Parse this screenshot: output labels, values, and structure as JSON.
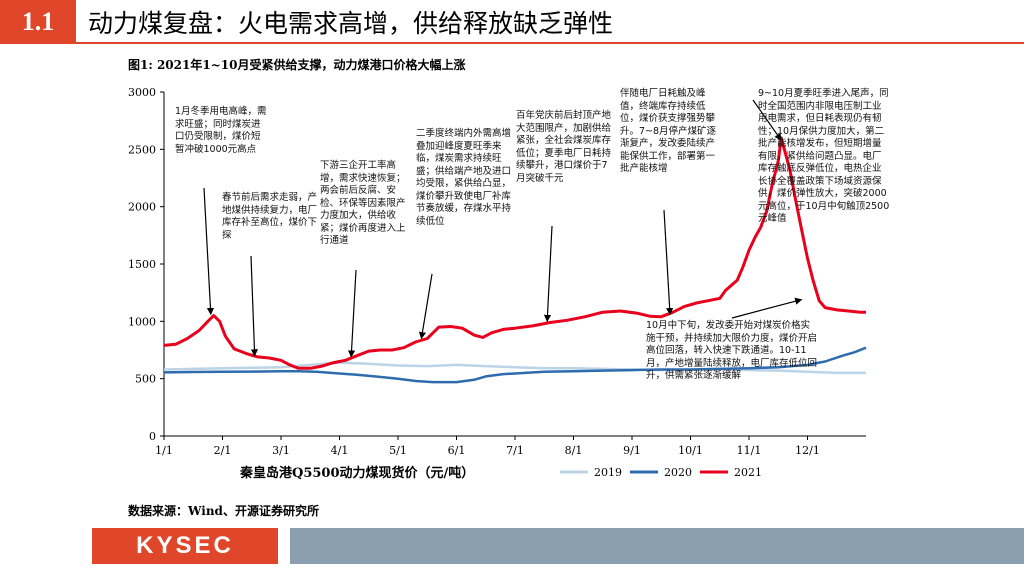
{
  "header": {
    "section": "1.1",
    "title": "动力煤复盘：火电需求高增，供给释放缺乏弹性"
  },
  "figure_caption": "图1:  2021年1~10月受紧供给支撑，动力煤港口价格大幅上涨",
  "source_note": "数据来源：Wind、开源证券研究所",
  "footer": {
    "logo_text": "KYSEC"
  },
  "chart_data": {
    "type": "line",
    "xlabel": "秦皇岛港Q5500动力煤现货价（元/吨）",
    "ylabel": "",
    "x_ticks": [
      "1/1",
      "2/1",
      "3/1",
      "4/1",
      "5/1",
      "6/1",
      "7/1",
      "8/1",
      "9/1",
      "10/1",
      "11/1",
      "12/1"
    ],
    "y_ticks": [
      0,
      500,
      1000,
      1500,
      2000,
      2500,
      3000
    ],
    "ylim": [
      0,
      3000
    ],
    "x_range_months": [
      0,
      12
    ],
    "legend_position": "bottom-right",
    "series": [
      {
        "name": "2019",
        "color": "#bcd3e8",
        "points": [
          [
            0,
            580
          ],
          [
            0.5,
            585
          ],
          [
            1,
            590
          ],
          [
            1.5,
            595
          ],
          [
            2,
            600
          ],
          [
            2.5,
            620
          ],
          [
            3,
            640
          ],
          [
            3.5,
            630
          ],
          [
            4,
            615
          ],
          [
            4.5,
            610
          ],
          [
            5,
            620
          ],
          [
            5.5,
            610
          ],
          [
            6,
            600
          ],
          [
            6.5,
            590
          ],
          [
            7,
            590
          ],
          [
            7.5,
            585
          ],
          [
            8,
            580
          ],
          [
            8.5,
            575
          ],
          [
            9,
            580
          ],
          [
            9.5,
            585
          ],
          [
            10,
            575
          ],
          [
            10.5,
            570
          ],
          [
            11,
            560
          ],
          [
            11.5,
            550
          ],
          [
            12,
            550
          ]
        ]
      },
      {
        "name": "2020",
        "color": "#2e6cae",
        "points": [
          [
            0,
            555
          ],
          [
            0.5,
            558
          ],
          [
            1,
            560
          ],
          [
            1.5,
            562
          ],
          [
            2,
            565
          ],
          [
            2.3,
            565
          ],
          [
            2.6,
            560
          ],
          [
            3,
            545
          ],
          [
            3.3,
            535
          ],
          [
            3.6,
            520
          ],
          [
            4,
            500
          ],
          [
            4.3,
            480
          ],
          [
            4.6,
            470
          ],
          [
            5,
            470
          ],
          [
            5.3,
            490
          ],
          [
            5.5,
            520
          ],
          [
            5.8,
            540
          ],
          [
            6,
            545
          ],
          [
            6.5,
            560
          ],
          [
            7,
            565
          ],
          [
            7.5,
            570
          ],
          [
            8,
            575
          ],
          [
            8.5,
            580
          ],
          [
            9,
            580
          ],
          [
            9.5,
            585
          ],
          [
            10,
            590
          ],
          [
            10.5,
            600
          ],
          [
            11,
            620
          ],
          [
            11.3,
            650
          ],
          [
            11.6,
            700
          ],
          [
            11.8,
            730
          ],
          [
            12,
            770
          ]
        ]
      },
      {
        "name": "2021",
        "color": "#e8001c",
        "points": [
          [
            0,
            790
          ],
          [
            0.2,
            800
          ],
          [
            0.4,
            850
          ],
          [
            0.6,
            920
          ],
          [
            0.75,
            1000
          ],
          [
            0.85,
            1050
          ],
          [
            0.95,
            1000
          ],
          [
            1.05,
            870
          ],
          [
            1.2,
            760
          ],
          [
            1.4,
            720
          ],
          [
            1.6,
            690
          ],
          [
            1.8,
            680
          ],
          [
            2,
            660
          ],
          [
            2.15,
            620
          ],
          [
            2.3,
            590
          ],
          [
            2.5,
            590
          ],
          [
            2.7,
            610
          ],
          [
            2.9,
            640
          ],
          [
            3.1,
            660
          ],
          [
            3.3,
            700
          ],
          [
            3.5,
            740
          ],
          [
            3.7,
            750
          ],
          [
            3.9,
            750
          ],
          [
            4.1,
            770
          ],
          [
            4.3,
            820
          ],
          [
            4.5,
            850
          ],
          [
            4.7,
            950
          ],
          [
            4.9,
            955
          ],
          [
            5.1,
            940
          ],
          [
            5.3,
            880
          ],
          [
            5.45,
            860
          ],
          [
            5.6,
            900
          ],
          [
            5.8,
            930
          ],
          [
            6,
            940
          ],
          [
            6.3,
            960
          ],
          [
            6.6,
            990
          ],
          [
            6.9,
            1010
          ],
          [
            7.2,
            1040
          ],
          [
            7.5,
            1080
          ],
          [
            7.8,
            1090
          ],
          [
            8.1,
            1070
          ],
          [
            8.3,
            1045
          ],
          [
            8.5,
            1040
          ],
          [
            8.7,
            1080
          ],
          [
            8.9,
            1130
          ],
          [
            9.1,
            1160
          ],
          [
            9.3,
            1180
          ],
          [
            9.5,
            1200
          ],
          [
            9.6,
            1270
          ],
          [
            9.8,
            1360
          ],
          [
            9.9,
            1480
          ],
          [
            10.0,
            1620
          ],
          [
            10.1,
            1730
          ],
          [
            10.2,
            1820
          ],
          [
            10.3,
            1960
          ],
          [
            10.4,
            2200
          ],
          [
            10.5,
            2400
          ],
          [
            10.55,
            2600
          ],
          [
            10.62,
            2470
          ],
          [
            10.7,
            2320
          ],
          [
            10.8,
            2050
          ],
          [
            10.9,
            1800
          ],
          [
            11.0,
            1550
          ],
          [
            11.1,
            1350
          ],
          [
            11.2,
            1180
          ],
          [
            11.3,
            1120
          ],
          [
            11.5,
            1100
          ],
          [
            11.7,
            1090
          ],
          [
            11.9,
            1080
          ],
          [
            12.0,
            1080
          ]
        ]
      }
    ],
    "annotations": [
      {
        "id": "a1",
        "text": "1月冬季用电高峰，需求旺盛；同时煤炭进口仍受限制，煤价短暂冲破1000元高点"
      },
      {
        "id": "a2",
        "text": "春节前后需求走弱，产地煤供持续复力，电厂库存补至高位，煤价下探"
      },
      {
        "id": "a3",
        "text": "下游三企开工率高增，需求快速恢复；两会前后反腐、安检、环保等因素限产力度加大，供给收紧；煤价再度进入上行通道"
      },
      {
        "id": "a4",
        "text": "二季度终端内外需高增叠加迎峰度夏旺季来临，煤炭需求持续旺盛；供给端产地及进口均受限，紧供给凸显，煤价攀升致使电厂补库节奏放缓，存煤水平持续低位"
      },
      {
        "id": "a5",
        "text": "百年党庆前后封顶产地大范围限产，加剧供给紧张，全社会煤炭库存低位；夏季电厂日耗持续攀升，港口煤价于7月突破千元"
      },
      {
        "id": "a6",
        "text": "伴随电厂日耗触及峰值，终端库存持续低位，煤价获支撑强势攀升。7~8月停产煤矿逐渐复产，发改委陆续产能保供工作，部署第一批产能核增"
      },
      {
        "id": "a7",
        "text": "9~10月夏季旺季进入尾声，同时全国范围内非限电压制工业用电需求，但日耗表现仍有韧性；10月保供力度加大，第二批产能核增发布，但短期增量有限，紧供给问题凸显。电厂库存触底反弹低位，电热企业长协全覆盖政策下场域资源保供，煤价弹性放大，突破2000元高位，于10月中旬触顶2500元峰值"
      },
      {
        "id": "a8",
        "text": "10月中下旬，发改委开始对煤炭价格实施干预，并持续加大限价力度，煤价开启高位回落，转入快速下跌通道。10-11月，产地增量陆续释放，电厂库存低位回升，供需紧张逐渐缓解"
      }
    ]
  }
}
